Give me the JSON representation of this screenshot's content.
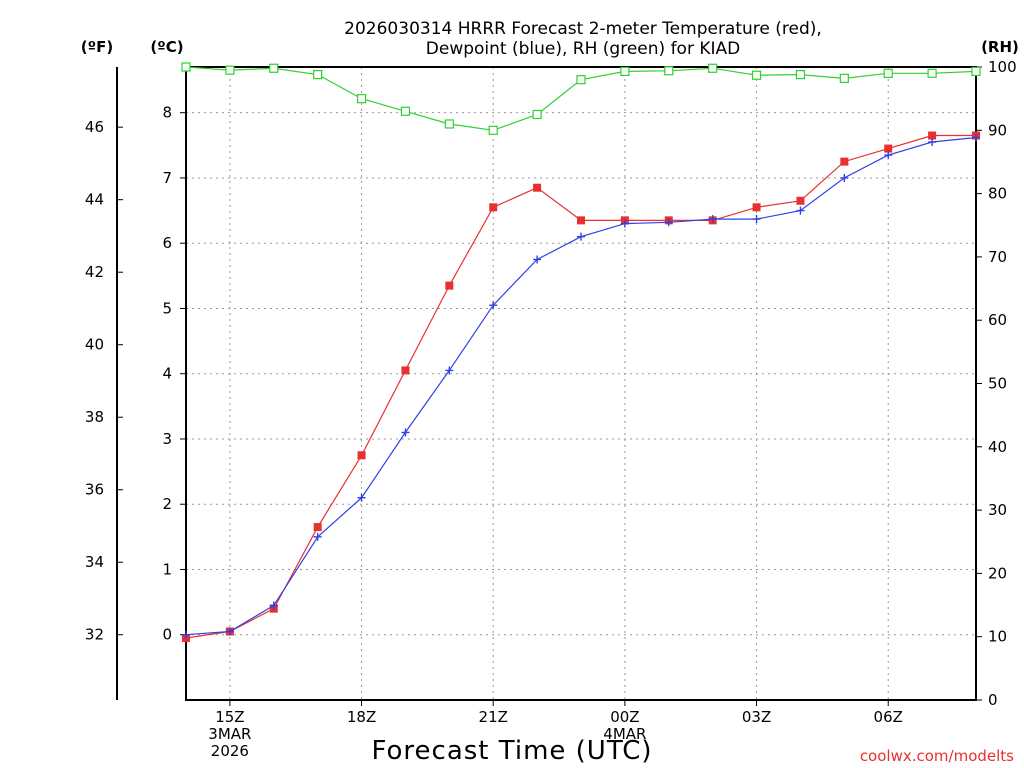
{
  "chart_data": {
    "type": "line",
    "title_line1": "2026030314 HRRR Forecast 2-meter Temperature (red),",
    "title_line2": "Dewpoint (blue), RH (green) for KIAD",
    "xlabel": "Forecast Time (UTC)",
    "credit": "coolwx.com/modelts",
    "left_f_unit": "(ºF)",
    "left_c_unit": "(ºC)",
    "right_unit": "(RH)",
    "x_hours": [
      14,
      15,
      16,
      17,
      18,
      19,
      20,
      21,
      22,
      23,
      24,
      25,
      26,
      27,
      28,
      29,
      30,
      31,
      32
    ],
    "x_lim": [
      14,
      32
    ],
    "c_lim": [
      -1,
      8.7
    ],
    "rh_lim": [
      0,
      100
    ],
    "f_ticks": [
      32,
      34,
      36,
      38,
      40,
      42,
      44,
      46
    ],
    "c_ticks": [
      0,
      1,
      2,
      3,
      4,
      5,
      6,
      7,
      8
    ],
    "rh_ticks": [
      0,
      10,
      20,
      30,
      40,
      50,
      60,
      70,
      80,
      90,
      100
    ],
    "x_ticks": [
      {
        "hour": 15,
        "lines": [
          "15Z",
          "3MAR",
          "2026"
        ]
      },
      {
        "hour": 18,
        "lines": [
          "18Z"
        ]
      },
      {
        "hour": 21,
        "lines": [
          "21Z"
        ]
      },
      {
        "hour": 24,
        "lines": [
          "00Z",
          "4MAR"
        ]
      },
      {
        "hour": 27,
        "lines": [
          "03Z"
        ]
      },
      {
        "hour": 30,
        "lines": [
          "06Z"
        ]
      }
    ],
    "series": [
      {
        "name": "2-meter Temperature",
        "unit": "C",
        "color": "#e83030",
        "marker": "square",
        "values": [
          -0.05,
          0.05,
          0.4,
          1.65,
          2.75,
          4.05,
          5.35,
          6.55,
          6.85,
          6.35,
          6.35,
          6.35,
          6.35,
          6.55,
          6.65,
          7.25,
          7.45,
          7.65,
          7.65
        ]
      },
      {
        "name": "Dewpoint",
        "unit": "C",
        "color": "#3040e8",
        "marker": "plus",
        "values": [
          0.0,
          0.05,
          0.45,
          1.5,
          2.1,
          3.1,
          4.05,
          5.05,
          5.75,
          6.1,
          6.3,
          6.32,
          6.37,
          6.37,
          6.5,
          7.0,
          7.35,
          7.55,
          7.62
        ]
      },
      {
        "name": "RH",
        "unit": "%",
        "color": "#30d030",
        "marker": "open-square",
        "values": [
          100,
          99.5,
          99.8,
          98.8,
          95,
          93,
          91,
          90,
          92.5,
          98,
          99.3,
          99.4,
          99.8,
          98.7,
          98.8,
          98.2,
          99,
          99,
          99.3
        ]
      }
    ]
  }
}
